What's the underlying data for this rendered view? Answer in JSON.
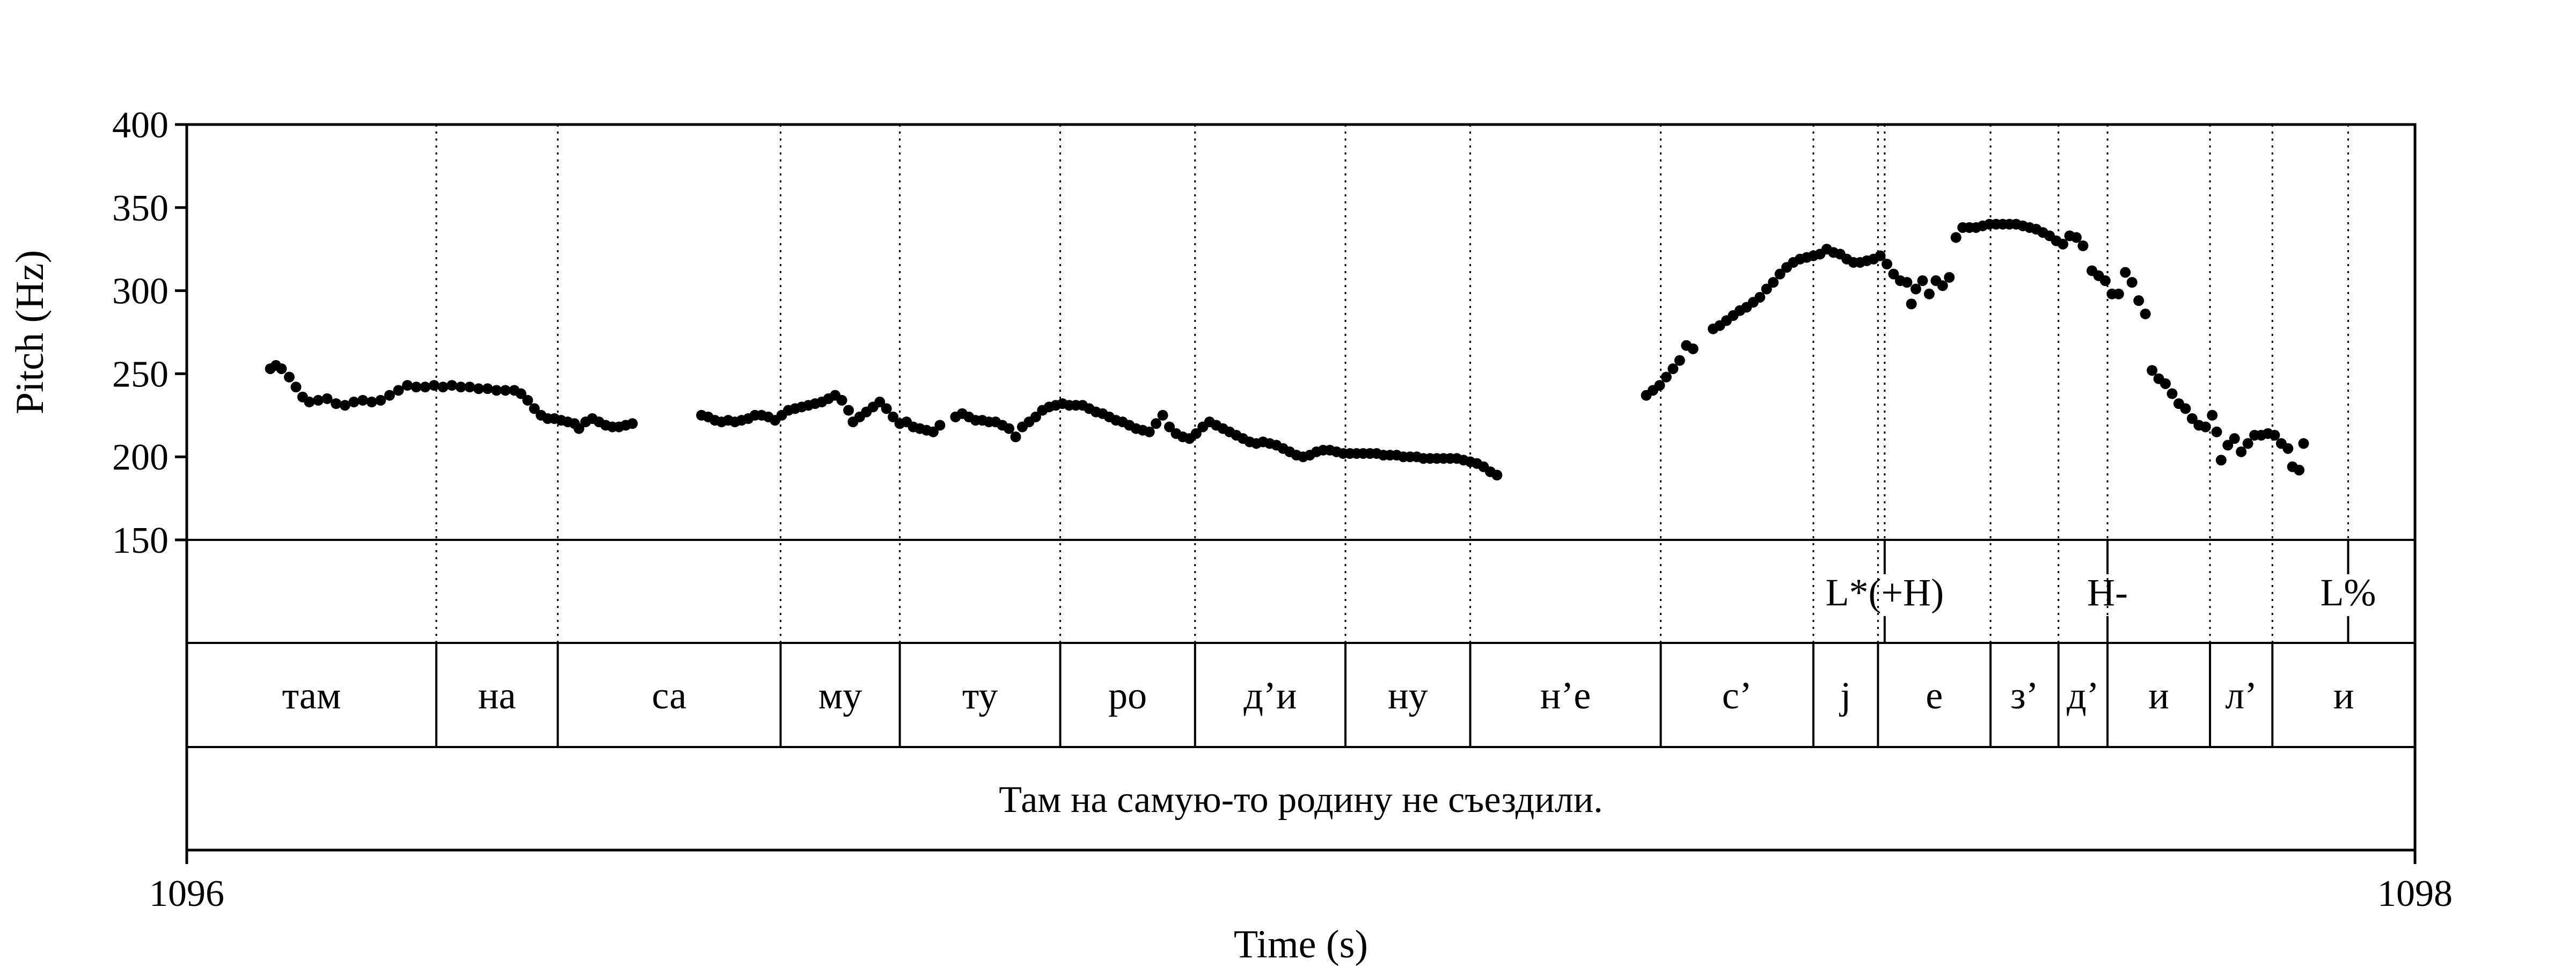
{
  "chart_data": {
    "type": "scatter",
    "xlabel": "Time (s)",
    "ylabel": "Pitch (Hz)",
    "xlim": [
      1096,
      1098
    ],
    "ylim": [
      150,
      400
    ],
    "x_ticks": [
      "1096",
      "1098"
    ],
    "y_ticks": [
      "150",
      "200",
      "250",
      "300",
      "350",
      "400"
    ],
    "pitch_points": [
      [
        1096.075,
        253
      ],
      [
        1096.08,
        255
      ],
      [
        1096.085,
        253
      ],
      [
        1096.092,
        248
      ],
      [
        1096.098,
        242
      ],
      [
        1096.104,
        236
      ],
      [
        1096.11,
        233
      ],
      [
        1096.118,
        234
      ],
      [
        1096.126,
        235
      ],
      [
        1096.134,
        232
      ],
      [
        1096.142,
        231
      ],
      [
        1096.15,
        233
      ],
      [
        1096.158,
        234
      ],
      [
        1096.166,
        233
      ],
      [
        1096.174,
        234
      ],
      [
        1096.182,
        237
      ],
      [
        1096.19,
        240
      ],
      [
        1096.198,
        243
      ],
      [
        1096.206,
        242
      ],
      [
        1096.214,
        242
      ],
      [
        1096.222,
        243
      ],
      [
        1096.23,
        242
      ],
      [
        1096.238,
        243
      ],
      [
        1096.246,
        242
      ],
      [
        1096.254,
        242
      ],
      [
        1096.262,
        241
      ],
      [
        1096.27,
        241
      ],
      [
        1096.278,
        240
      ],
      [
        1096.286,
        240
      ],
      [
        1096.294,
        240
      ],
      [
        1096.3,
        238
      ],
      [
        1096.306,
        234
      ],
      [
        1096.312,
        229
      ],
      [
        1096.318,
        225
      ],
      [
        1096.324,
        223
      ],
      [
        1096.33,
        223
      ],
      [
        1096.336,
        222
      ],
      [
        1096.342,
        221
      ],
      [
        1096.348,
        220
      ],
      [
        1096.352,
        217
      ],
      [
        1096.358,
        221
      ],
      [
        1096.364,
        223
      ],
      [
        1096.37,
        221
      ],
      [
        1096.376,
        219
      ],
      [
        1096.382,
        218
      ],
      [
        1096.388,
        218
      ],
      [
        1096.394,
        219
      ],
      [
        1096.4,
        220
      ],
      [
        1096.462,
        225
      ],
      [
        1096.468,
        224
      ],
      [
        1096.474,
        222
      ],
      [
        1096.48,
        221
      ],
      [
        1096.486,
        222
      ],
      [
        1096.492,
        221
      ],
      [
        1096.498,
        222
      ],
      [
        1096.504,
        223
      ],
      [
        1096.51,
        225
      ],
      [
        1096.516,
        225
      ],
      [
        1096.522,
        224
      ],
      [
        1096.528,
        222
      ],
      [
        1096.534,
        225
      ],
      [
        1096.54,
        228
      ],
      [
        1096.546,
        229
      ],
      [
        1096.552,
        230
      ],
      [
        1096.558,
        231
      ],
      [
        1096.564,
        232
      ],
      [
        1096.57,
        233
      ],
      [
        1096.576,
        235
      ],
      [
        1096.582,
        237
      ],
      [
        1096.588,
        234
      ],
      [
        1096.594,
        228
      ],
      [
        1096.598,
        221
      ],
      [
        1096.604,
        224
      ],
      [
        1096.61,
        227
      ],
      [
        1096.616,
        230
      ],
      [
        1096.622,
        233
      ],
      [
        1096.628,
        229
      ],
      [
        1096.634,
        224
      ],
      [
        1096.64,
        220
      ],
      [
        1096.646,
        221
      ],
      [
        1096.652,
        218
      ],
      [
        1096.658,
        217
      ],
      [
        1096.664,
        216
      ],
      [
        1096.67,
        215
      ],
      [
        1096.676,
        219
      ],
      [
        1096.69,
        224
      ],
      [
        1096.696,
        226
      ],
      [
        1096.702,
        224
      ],
      [
        1096.708,
        222
      ],
      [
        1096.714,
        222
      ],
      [
        1096.72,
        221
      ],
      [
        1096.726,
        221
      ],
      [
        1096.732,
        219
      ],
      [
        1096.738,
        217
      ],
      [
        1096.744,
        212
      ],
      [
        1096.75,
        218
      ],
      [
        1096.756,
        221
      ],
      [
        1096.762,
        224
      ],
      [
        1096.768,
        228
      ],
      [
        1096.774,
        230
      ],
      [
        1096.78,
        231
      ],
      [
        1096.786,
        232
      ],
      [
        1096.792,
        231
      ],
      [
        1096.798,
        231
      ],
      [
        1096.804,
        231
      ],
      [
        1096.81,
        229
      ],
      [
        1096.816,
        227
      ],
      [
        1096.822,
        226
      ],
      [
        1096.828,
        224
      ],
      [
        1096.834,
        222
      ],
      [
        1096.84,
        221
      ],
      [
        1096.846,
        219
      ],
      [
        1096.852,
        217
      ],
      [
        1096.858,
        216
      ],
      [
        1096.864,
        215
      ],
      [
        1096.87,
        220
      ],
      [
        1096.876,
        225
      ],
      [
        1096.882,
        218
      ],
      [
        1096.888,
        214
      ],
      [
        1096.894,
        212
      ],
      [
        1096.9,
        211
      ],
      [
        1096.906,
        214
      ],
      [
        1096.912,
        218
      ],
      [
        1096.918,
        221
      ],
      [
        1096.924,
        219
      ],
      [
        1096.93,
        217
      ],
      [
        1096.936,
        215
      ],
      [
        1096.942,
        213
      ],
      [
        1096.948,
        211
      ],
      [
        1096.954,
        209
      ],
      [
        1096.96,
        208
      ],
      [
        1096.966,
        209
      ],
      [
        1096.972,
        208
      ],
      [
        1096.978,
        207
      ],
      [
        1096.984,
        205
      ],
      [
        1096.99,
        203
      ],
      [
        1096.996,
        201
      ],
      [
        1097.002,
        200
      ],
      [
        1097.008,
        201
      ],
      [
        1097.014,
        203
      ],
      [
        1097.02,
        204
      ],
      [
        1097.026,
        204
      ],
      [
        1097.032,
        203
      ],
      [
        1097.038,
        202
      ],
      [
        1097.044,
        202
      ],
      [
        1097.05,
        202
      ],
      [
        1097.056,
        202
      ],
      [
        1097.062,
        202
      ],
      [
        1097.068,
        202
      ],
      [
        1097.074,
        201
      ],
      [
        1097.08,
        201
      ],
      [
        1097.086,
        201
      ],
      [
        1097.092,
        200
      ],
      [
        1097.098,
        200
      ],
      [
        1097.104,
        200
      ],
      [
        1097.11,
        199
      ],
      [
        1097.116,
        199
      ],
      [
        1097.122,
        199
      ],
      [
        1097.128,
        199
      ],
      [
        1097.134,
        199
      ],
      [
        1097.14,
        199
      ],
      [
        1097.146,
        198
      ],
      [
        1097.152,
        197
      ],
      [
        1097.158,
        196
      ],
      [
        1097.164,
        194
      ],
      [
        1097.17,
        191
      ],
      [
        1097.176,
        189
      ],
      [
        1097.31,
        237
      ],
      [
        1097.316,
        240
      ],
      [
        1097.322,
        243
      ],
      [
        1097.328,
        248
      ],
      [
        1097.334,
        253
      ],
      [
        1097.34,
        258
      ],
      [
        1097.346,
        267
      ],
      [
        1097.352,
        265
      ],
      [
        1097.37,
        277
      ],
      [
        1097.376,
        279
      ],
      [
        1097.382,
        282
      ],
      [
        1097.388,
        285
      ],
      [
        1097.394,
        288
      ],
      [
        1097.4,
        290
      ],
      [
        1097.406,
        293
      ],
      [
        1097.412,
        296
      ],
      [
        1097.418,
        301
      ],
      [
        1097.424,
        305
      ],
      [
        1097.43,
        310
      ],
      [
        1097.436,
        314
      ],
      [
        1097.442,
        317
      ],
      [
        1097.448,
        319
      ],
      [
        1097.454,
        320
      ],
      [
        1097.46,
        321
      ],
      [
        1097.466,
        322
      ],
      [
        1097.472,
        325
      ],
      [
        1097.478,
        323
      ],
      [
        1097.484,
        322
      ],
      [
        1097.49,
        319
      ],
      [
        1097.496,
        317
      ],
      [
        1097.502,
        317
      ],
      [
        1097.508,
        318
      ],
      [
        1097.514,
        319
      ],
      [
        1097.52,
        321
      ],
      [
        1097.526,
        316
      ],
      [
        1097.532,
        310
      ],
      [
        1097.538,
        306
      ],
      [
        1097.544,
        305
      ],
      [
        1097.548,
        292
      ],
      [
        1097.552,
        301
      ],
      [
        1097.558,
        306
      ],
      [
        1097.564,
        298
      ],
      [
        1097.57,
        306
      ],
      [
        1097.576,
        303
      ],
      [
        1097.582,
        308
      ],
      [
        1097.588,
        332
      ],
      [
        1097.594,
        338
      ],
      [
        1097.6,
        338
      ],
      [
        1097.606,
        338
      ],
      [
        1097.612,
        339
      ],
      [
        1097.618,
        340
      ],
      [
        1097.624,
        340
      ],
      [
        1097.63,
        340
      ],
      [
        1097.636,
        340
      ],
      [
        1097.642,
        340
      ],
      [
        1097.648,
        339
      ],
      [
        1097.654,
        338
      ],
      [
        1097.66,
        337
      ],
      [
        1097.666,
        335
      ],
      [
        1097.672,
        333
      ],
      [
        1097.678,
        330
      ],
      [
        1097.684,
        328
      ],
      [
        1097.69,
        333
      ],
      [
        1097.696,
        332
      ],
      [
        1097.702,
        327
      ],
      [
        1097.71,
        312
      ],
      [
        1097.716,
        309
      ],
      [
        1097.722,
        306
      ],
      [
        1097.728,
        298
      ],
      [
        1097.734,
        298
      ],
      [
        1097.74,
        311
      ],
      [
        1097.746,
        305
      ],
      [
        1097.752,
        294
      ],
      [
        1097.758,
        286
      ],
      [
        1097.764,
        252
      ],
      [
        1097.77,
        247
      ],
      [
        1097.776,
        244
      ],
      [
        1097.782,
        238
      ],
      [
        1097.788,
        232
      ],
      [
        1097.794,
        229
      ],
      [
        1097.8,
        223
      ],
      [
        1097.806,
        219
      ],
      [
        1097.812,
        218
      ],
      [
        1097.818,
        225
      ],
      [
        1097.822,
        215
      ],
      [
        1097.826,
        198
      ],
      [
        1097.832,
        207
      ],
      [
        1097.838,
        211
      ],
      [
        1097.844,
        203
      ],
      [
        1097.85,
        208
      ],
      [
        1097.856,
        213
      ],
      [
        1097.862,
        213
      ],
      [
        1097.868,
        214
      ],
      [
        1097.874,
        213
      ],
      [
        1097.88,
        208
      ],
      [
        1097.886,
        205
      ],
      [
        1097.89,
        194
      ],
      [
        1097.896,
        192
      ],
      [
        1097.9,
        208
      ]
    ],
    "tiers": {
      "tones": [
        {
          "t": 1097.524,
          "label": "L*(+H)"
        },
        {
          "t": 1097.724,
          "label": "H-"
        },
        {
          "t": 1097.94,
          "label": "L%"
        }
      ],
      "syllable_boundaries": [
        1096.224,
        1096.333,
        1096.533,
        1096.64,
        1096.784,
        1096.905,
        1097.04,
        1097.152,
        1097.323,
        1097.46,
        1097.518,
        1097.619,
        1097.68,
        1097.724,
        1097.816,
        1097.872
      ],
      "syllables": [
        "там",
        "на",
        "са",
        "му",
        "ту",
        "ро",
        "д’и",
        "ну",
        "н’е",
        "с’",
        "j",
        "е",
        "з’",
        "д’",
        "и",
        "л’",
        "и"
      ],
      "sentence": "Там на самую-то родину не съездили."
    }
  }
}
